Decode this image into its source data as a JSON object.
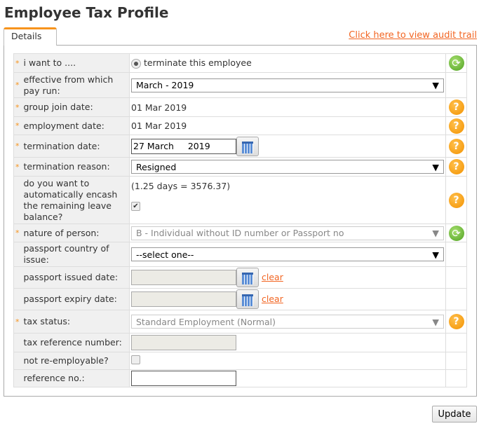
{
  "title": "Employee Tax Profile",
  "tab": "Details",
  "audit_link": "Click here to view audit trail",
  "rows": {
    "want": {
      "label": "i want to ....",
      "value": "terminate this employee"
    },
    "payrun": {
      "label": "effective from which pay run:",
      "value": "March - 2019"
    },
    "group": {
      "label": "group join date:",
      "value": "01 Mar 2019"
    },
    "emp": {
      "label": "employment date:",
      "value": "01 Mar 2019"
    },
    "term": {
      "label": "termination date:",
      "value": "27 March     2019"
    },
    "reason": {
      "label": "termination reason:",
      "value": "Resigned"
    },
    "encash": {
      "label": "do you want to automatically encash the remaining leave balance?",
      "value": "(1.25 days = 3576.37)",
      "checked": true
    },
    "nature": {
      "label": "nature of person:",
      "value": "B - Individual without ID number or Passport no"
    },
    "country": {
      "label": "passport country of issue:",
      "value": "--select one--"
    },
    "issued": {
      "label": "passport issued date:",
      "clear": "clear"
    },
    "expiry": {
      "label": "passport expiry date:",
      "clear": "clear"
    },
    "status": {
      "label": "tax status:",
      "value": "Standard Employment (Normal)"
    },
    "taxref": {
      "label": "tax reference number:"
    },
    "reemploy": {
      "label": "not re-employable?",
      "checked": false
    },
    "refno": {
      "label": "reference no.:"
    }
  },
  "required_mark": "*",
  "update": "Update"
}
